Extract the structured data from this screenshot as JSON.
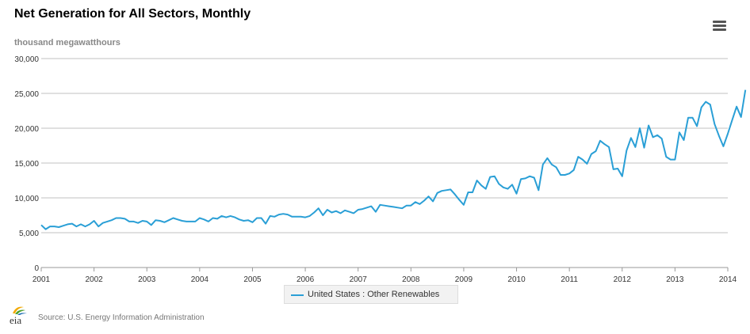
{
  "header": {
    "title": "Net Generation for All Sectors, Monthly",
    "units": "thousand megawatthours"
  },
  "footer": {
    "logo_text": "eia",
    "source": "Source: U.S. Energy Information Administration"
  },
  "legend": {
    "label": "United States : Other Renewables"
  },
  "colors": {
    "series": "#2a9fd6",
    "grid": "#c0c0c0",
    "axis_text": "#333333"
  },
  "icons": {
    "menu": "hamburger-menu-icon"
  },
  "chart_data": {
    "type": "line",
    "title": "Net Generation for All Sectors, Monthly",
    "ylabel": "thousand megawatthours",
    "ylim": [
      0,
      30000
    ],
    "xlim": [
      "2001-01",
      "2014-01"
    ],
    "yticks": [
      0,
      5000,
      10000,
      15000,
      20000,
      25000,
      30000
    ],
    "ytick_labels": [
      "0",
      "5,000",
      "10,000",
      "15,000",
      "20,000",
      "25,000",
      "30,000"
    ],
    "xtick_labels": [
      "2001",
      "2002",
      "2003",
      "2004",
      "2005",
      "2006",
      "2007",
      "2008",
      "2009",
      "2010",
      "2011",
      "2012",
      "2013",
      "2014"
    ],
    "grid": true,
    "legend_position": "bottom-center",
    "series": [
      {
        "name": "United States : Other Renewables",
        "start": "2001-01",
        "frequency": "monthly",
        "values": [
          6100,
          5500,
          5900,
          5900,
          5800,
          6000,
          6200,
          6300,
          5900,
          6200,
          5900,
          6200,
          6700,
          5900,
          6400,
          6600,
          6800,
          7100,
          7100,
          7000,
          6600,
          6600,
          6400,
          6700,
          6600,
          6100,
          6800,
          6700,
          6500,
          6800,
          7100,
          6900,
          6700,
          6600,
          6600,
          6600,
          7100,
          6900,
          6600,
          7100,
          7000,
          7400,
          7200,
          7400,
          7200,
          6900,
          6700,
          6800,
          6500,
          7100,
          7100,
          6300,
          7400,
          7300,
          7600,
          7700,
          7600,
          7300,
          7300,
          7300,
          7200,
          7400,
          7900,
          8500,
          7500,
          8300,
          7900,
          8100,
          7800,
          8200,
          8000,
          7800,
          8300,
          8400,
          8600,
          8800,
          8000,
          9000,
          8900,
          8800,
          8700,
          8600,
          8500,
          8900,
          8900,
          9400,
          9100,
          9600,
          10200,
          9500,
          10700,
          11000,
          11100,
          11200,
          10500,
          9700,
          9000,
          10800,
          10800,
          12500,
          11800,
          11300,
          13000,
          13100,
          12000,
          11500,
          11300,
          11900,
          10600,
          12700,
          12800,
          13100,
          12900,
          11100,
          14800,
          15700,
          14800,
          14400,
          13300,
          13300,
          13500,
          14000,
          15900,
          15500,
          14900,
          16300,
          16700,
          18200,
          17700,
          17300,
          14100,
          14200,
          13100,
          16800,
          18600,
          17300,
          20000,
          17200,
          20400,
          18700,
          19000,
          18500,
          15900,
          15500,
          15500,
          19400,
          18300,
          21500,
          21500,
          20300,
          23000,
          23800,
          23400,
          20600,
          18900,
          17400,
          19200,
          21200,
          23100,
          21600,
          25500
        ]
      }
    ]
  }
}
